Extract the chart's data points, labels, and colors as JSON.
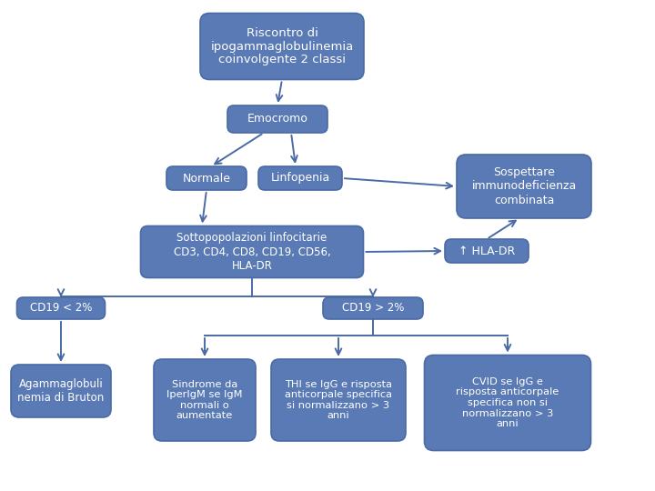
{
  "bg_color": "#ffffff",
  "box_bg": "#5a7ab5",
  "box_edge": "#4a6aa5",
  "text_color": "#ffffff",
  "arrow_color": "#4a6aa5",
  "title": "Riscontro di\nipogammaglobulinemia\ncoinvolgente 2 classi",
  "emocromo": "Emocromo",
  "normale": "Normale",
  "linfopenia": "Linfopenia",
  "sospettare": "Sospettare\nimmunodeficienza\ncombinata",
  "sottopop": "Sottopopolazioni linfocitarie\nCD3, CD4, CD8, CD19, CD56,\nHLA-DR",
  "hla_dr": "↑ HLA-DR",
  "cd19_low": "CD19 < 2%",
  "cd19_high": "CD19 > 2%",
  "agamma": "Agammaglobuli\nnemia di Bruton",
  "sindrome": "Sindrome da\nIperIgM se IgM\nnormali o\naumentate",
  "thi": "THI se IgG e risposta\nanticorpale specifica\nsi normalizzano > 3\nanni",
  "cvid": "CVID se IgG e\nrisposta anticorpale\nspecifica non si\nnormalizzano > 3\nanni"
}
